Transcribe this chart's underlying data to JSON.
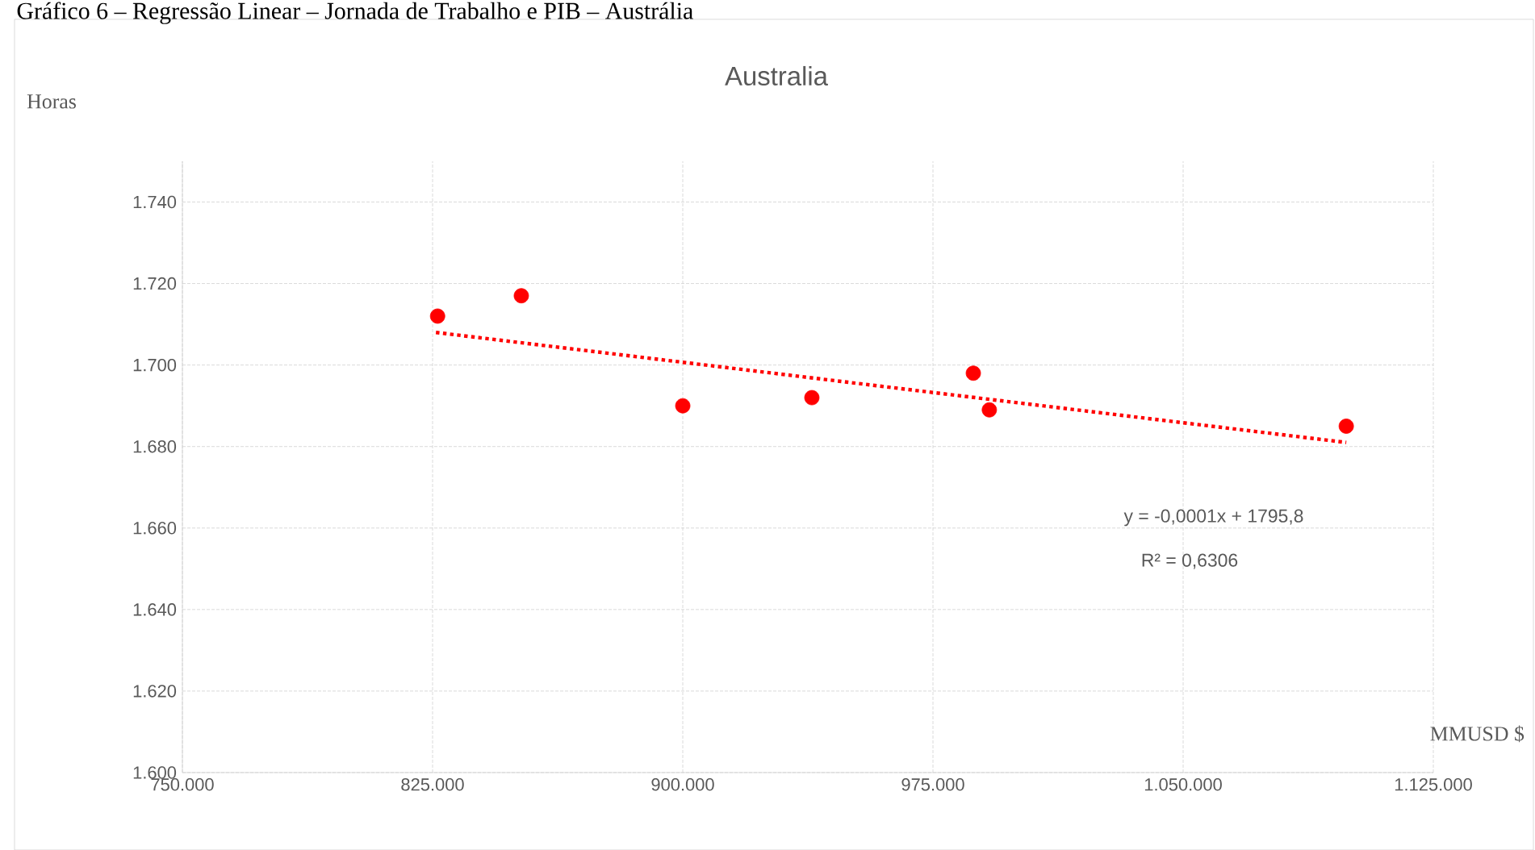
{
  "chart_data": {
    "type": "scatter",
    "title": "Australia",
    "xlabel": "MMUSD $",
    "ylabel": "Horas",
    "annotations": [
      "Gráfico 6 – Regressão Linear – Jornada de Trabalho e PIB – Austrália",
      "y = -0,0001x + 1795,8",
      "R² = 0,6306"
    ],
    "series": [
      {
        "color": "#ff0000",
        "marker": "circle",
        "x": [
          826500,
          851600,
          900000,
          938700,
          987100,
          991900,
          1098900
        ],
        "values": [
          1712,
          1717,
          1690,
          1692,
          1698,
          1689,
          1685
        ]
      },
      {
        "type": "line",
        "color": "#ff0000",
        "line_style": "dotted",
        "marker": "none",
        "x": [
          826000,
          1098900
        ],
        "values": [
          1708,
          1681
        ]
      }
    ],
    "xlim": [
      750000,
      1125000
    ],
    "xticks": [
      {
        "value": 750000,
        "label": "750.000"
      },
      {
        "value": 825000,
        "label": "825.000"
      },
      {
        "value": 900000,
        "label": "900.000"
      },
      {
        "value": 975000,
        "label": "975.000"
      },
      {
        "value": 1050000,
        "label": "1.050.000"
      },
      {
        "value": 1125000,
        "label": "1.125.000"
      }
    ],
    "ylim": [
      1600,
      1750
    ],
    "yticks": [
      {
        "value": 1600,
        "label": "1.600"
      },
      {
        "value": 1620,
        "label": "1.620"
      },
      {
        "value": 1640,
        "label": "1.640"
      },
      {
        "value": 1660,
        "label": "1.660"
      },
      {
        "value": 1680,
        "label": "1.680"
      },
      {
        "value": 1700,
        "label": "1.700"
      },
      {
        "value": 1720,
        "label": "1.720"
      },
      {
        "value": 1740,
        "label": "1.740"
      }
    ],
    "grid": true
  }
}
